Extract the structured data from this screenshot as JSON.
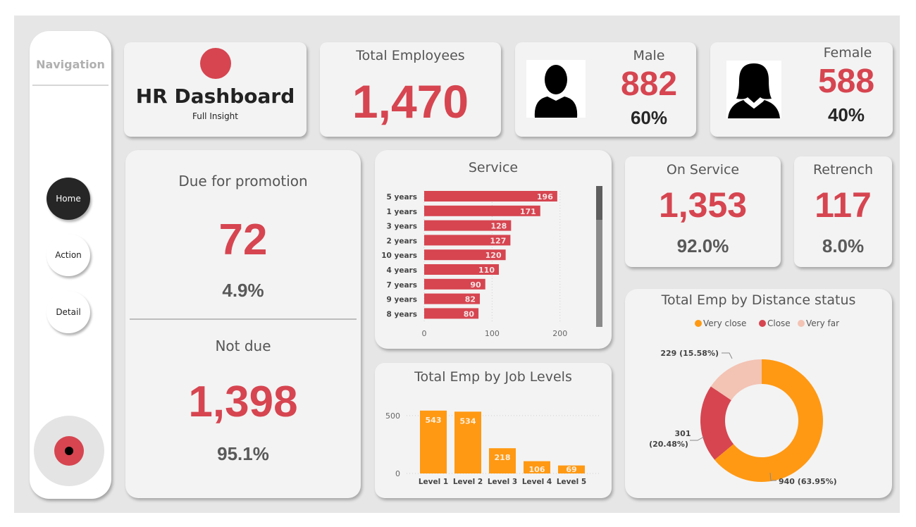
{
  "colors": {
    "accent_red": "#d64550",
    "orange": "#ff9913",
    "light_pink": "#f3c3b4",
    "background": "#e6e6e6",
    "card": "#f3f3f3"
  },
  "nav": {
    "title": "Navigation",
    "buttons": [
      {
        "label": "Home",
        "active": true
      },
      {
        "label": "Action",
        "active": false
      },
      {
        "label": "Detail",
        "active": false
      }
    ],
    "bottom_icon": "target-icon"
  },
  "header": {
    "logo_icon": "red-circle-icon",
    "title": "HR Dashboard",
    "subtitle": "Full Insight"
  },
  "total_employees": {
    "label": "Total Employees",
    "value": "1,470"
  },
  "male": {
    "label": "Male",
    "value": "882",
    "percent": "60%",
    "icon": "male-person-icon"
  },
  "female": {
    "label": "Female",
    "value": "588",
    "percent": "40%",
    "icon": "female-person-icon"
  },
  "promotion": {
    "due": {
      "label": "Due for promotion",
      "value": "72",
      "percent": "4.9%"
    },
    "not_due": {
      "label": "Not due",
      "value": "1,398",
      "percent": "95.1%"
    }
  },
  "on_service": {
    "label": "On Service",
    "value": "1,353",
    "percent": "92.0%"
  },
  "retrench": {
    "label": "Retrench",
    "value": "117",
    "percent": "8.0%"
  },
  "chart_data": [
    {
      "id": "service",
      "type": "bar",
      "orientation": "horizontal",
      "title": "Service",
      "categories": [
        "5 years",
        "1 years",
        "3 years",
        "2 years",
        "10 years",
        "4 years",
        "7 years",
        "9 years",
        "8 years"
      ],
      "values": [
        196,
        171,
        128,
        127,
        120,
        110,
        90,
        82,
        80
      ],
      "xticks": [
        "0",
        "100",
        "200"
      ],
      "xlim": [
        0,
        220
      ],
      "color": "#d64550",
      "grid": true,
      "scrollbar": true
    },
    {
      "id": "job_levels",
      "type": "bar",
      "title": "Total Emp by Job Levels",
      "categories": [
        "Level 1",
        "Level 2",
        "Level 3",
        "Level 4",
        "Level 5"
      ],
      "values": [
        543,
        534,
        218,
        106,
        69
      ],
      "yticks": [
        "0",
        "500"
      ],
      "ylim": [
        0,
        560
      ],
      "color": "#ff9913",
      "grid": true
    },
    {
      "id": "distance",
      "type": "pie",
      "donut": true,
      "title": "Total Emp by Distance status",
      "legend_position": "top-center",
      "slices": [
        {
          "name": "Very close",
          "value": 940,
          "percent": "63.95%",
          "label": "940 (63.95%)",
          "color": "#ff9913"
        },
        {
          "name": "Close",
          "value": 301,
          "percent": "20.48%",
          "label_line1": "301",
          "label_line2": "(20.48%)",
          "color": "#d64550"
        },
        {
          "name": "Very far",
          "value": 229,
          "percent": "15.58%",
          "label": "229 (15.58%)",
          "color": "#f3c3b4"
        }
      ]
    }
  ]
}
